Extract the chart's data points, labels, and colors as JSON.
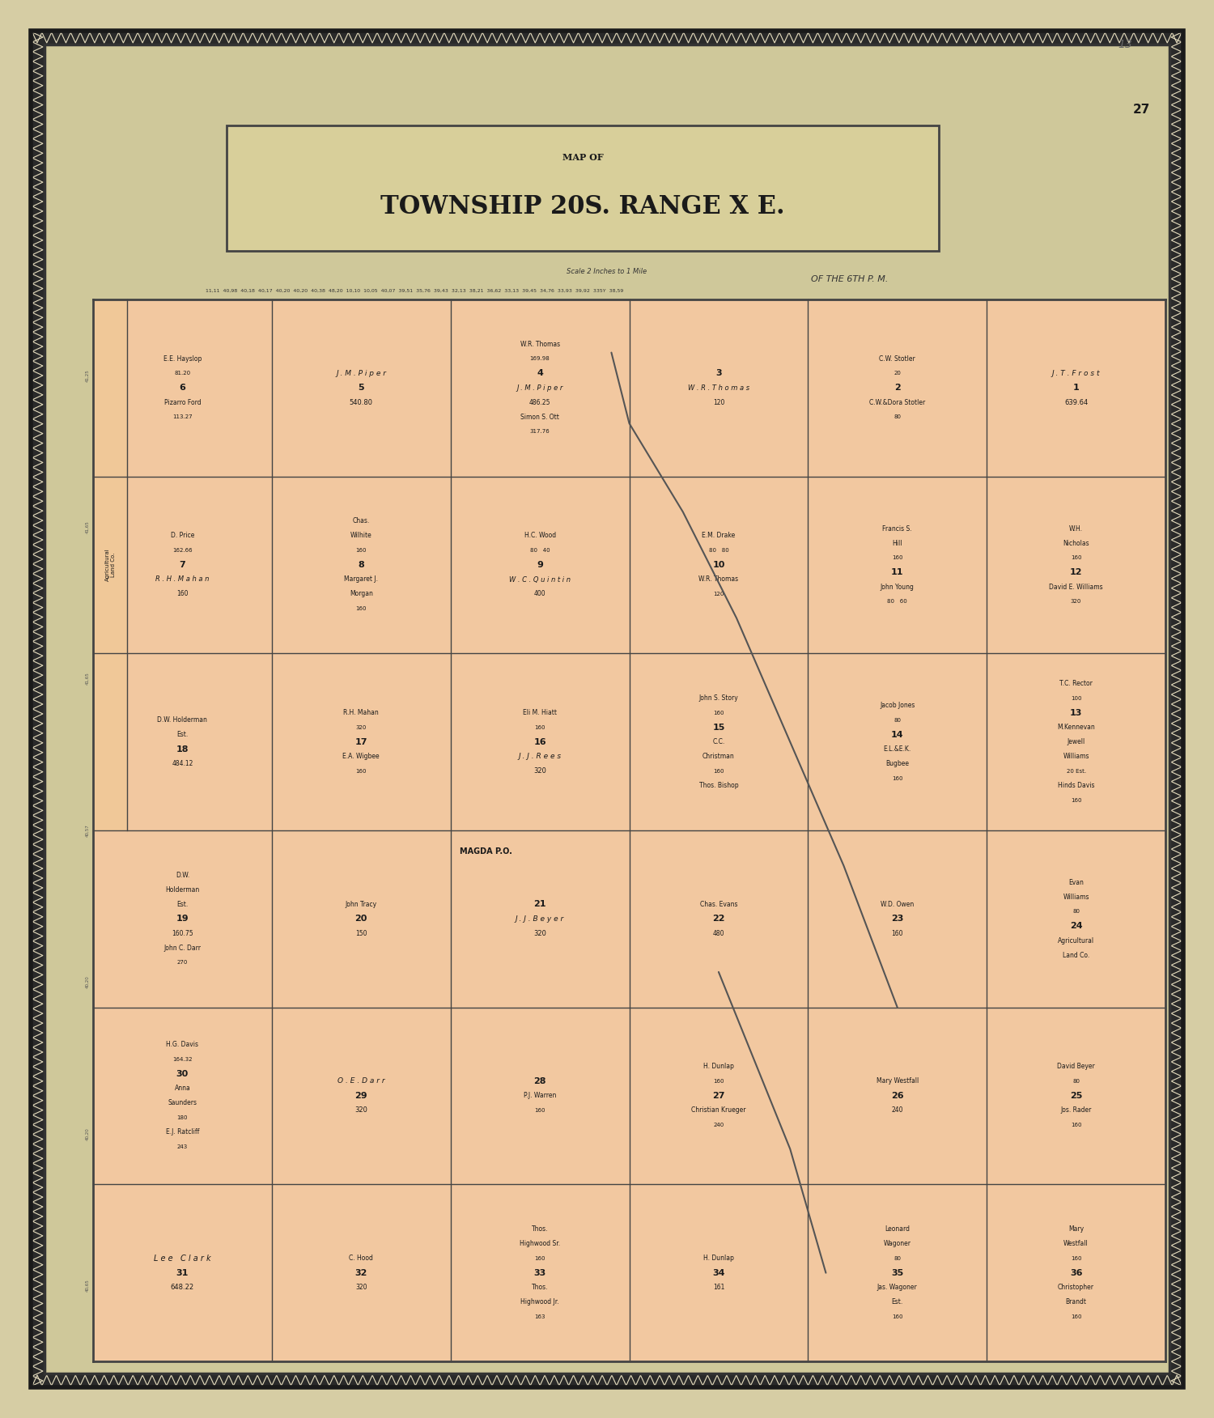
{
  "bg_color": "#d6cda4",
  "inner_bg": "#cfc89a",
  "map_bg": "#f2c8a0",
  "border_outer": "#1a1a1a",
  "title_main": "MAP OF",
  "title_sub": "TOWNSHIP 20S. RANGE X E.",
  "title_sub2": "OF THE 6TH P. M.",
  "page_number": "27",
  "pencil_number": "13",
  "grid_cols": 6,
  "grid_rows": 6,
  "section_numbers": [
    [
      6,
      5,
      4,
      3,
      2,
      1
    ],
    [
      7,
      8,
      9,
      10,
      11,
      12
    ],
    [
      18,
      17,
      16,
      15,
      14,
      13
    ],
    [
      19,
      20,
      21,
      22,
      23,
      24
    ],
    [
      30,
      29,
      28,
      27,
      26,
      25
    ],
    [
      31,
      32,
      33,
      34,
      35,
      36
    ]
  ],
  "text_color": "#1a1a1a",
  "line_color": "#444444",
  "scale_text": "Scale 2 Inches to 1 Mile",
  "top_measurements": "11,11  40,98  40,18  40,17  40,20  40,20  40,38  48,20  10,10  10,05  40,07  39,51  35,76  39,43  32,13  38,21  36,62  33,13  39,45  34,76  33,93  39,92  335Y  38,59",
  "left_measurements": [
    "41,25",
    "41,65",
    "41,65",
    "40,57",
    "40,20",
    "40,20",
    "40,65"
  ]
}
